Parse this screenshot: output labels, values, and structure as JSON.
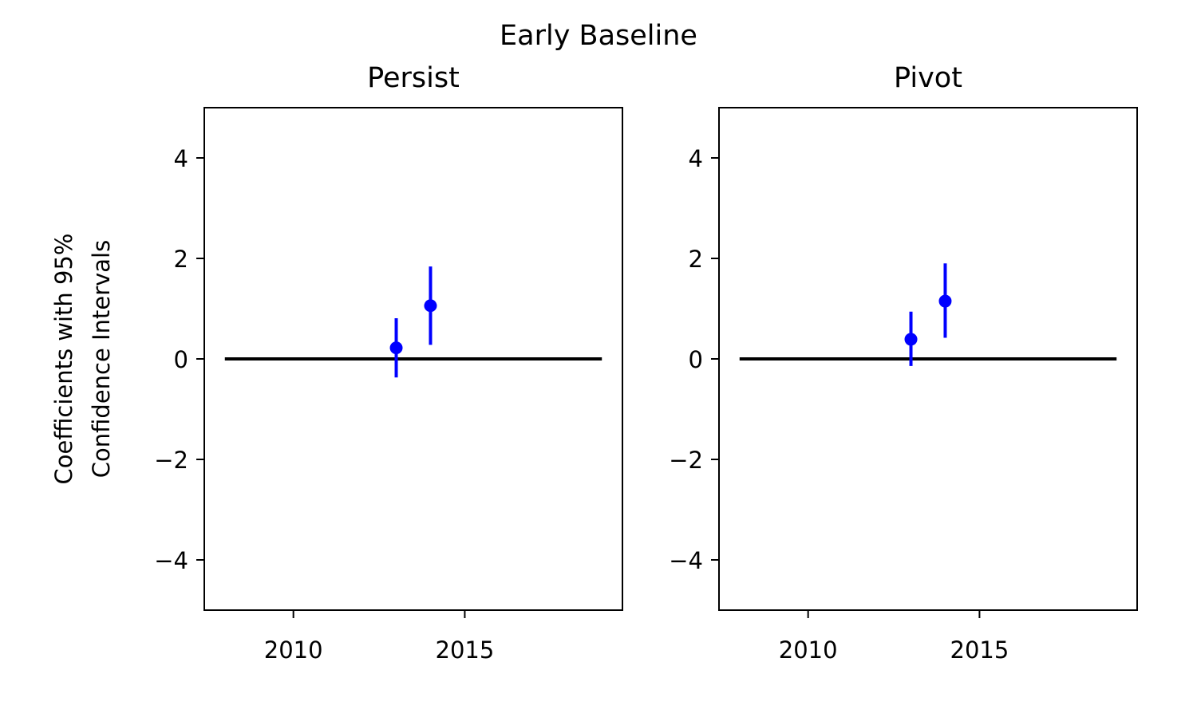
{
  "figure": {
    "suptitle": "Early Baseline",
    "ylabel_line1": "Coefficients with 95%",
    "ylabel_line2": "Confidence Intervals"
  },
  "chart_data": [
    {
      "type": "scatter",
      "title": "Persist",
      "xlabel": "",
      "ylabel": "Coefficients with 95% Confidence Intervals",
      "xlim": [
        2007.4,
        2019.6
      ],
      "ylim": [
        -5,
        5
      ],
      "xticks": [
        2010,
        2015
      ],
      "yticks": [
        -4,
        -2,
        0,
        2,
        4
      ],
      "grid": false,
      "reference_line": {
        "y": 0,
        "x_from": 2008,
        "x_to": 2019,
        "color": "#000000"
      },
      "points": [
        {
          "x": 2013,
          "y": 0.22,
          "low": -0.37,
          "high": 0.81
        },
        {
          "x": 2014,
          "y": 1.06,
          "low": 0.28,
          "high": 1.84
        }
      ],
      "color": "#0000ff"
    },
    {
      "type": "scatter",
      "title": "Pivot",
      "xlabel": "",
      "ylabel": "",
      "xlim": [
        2007.4,
        2019.6
      ],
      "ylim": [
        -5,
        5
      ],
      "xticks": [
        2010,
        2015
      ],
      "yticks": [
        -4,
        -2,
        0,
        2,
        4
      ],
      "grid": false,
      "reference_line": {
        "y": 0,
        "x_from": 2008,
        "x_to": 2019,
        "color": "#000000"
      },
      "points": [
        {
          "x": 2013,
          "y": 0.39,
          "low": -0.14,
          "high": 0.94
        },
        {
          "x": 2014,
          "y": 1.15,
          "low": 0.42,
          "high": 1.9
        }
      ],
      "color": "#0000ff"
    }
  ]
}
